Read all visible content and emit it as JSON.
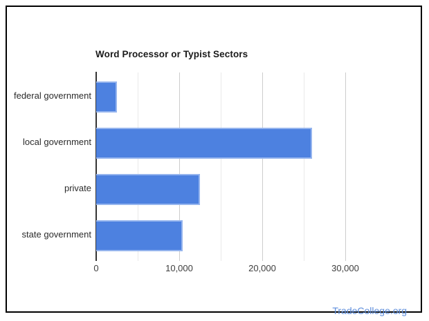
{
  "page": {
    "background_color": "#ffffff",
    "frame_border_color": "#000000"
  },
  "chart_data": {
    "type": "bar",
    "orientation": "horizontal",
    "title": "Word Processor or Typist Sectors",
    "categories": [
      "federal government",
      "local government",
      "private",
      "state government"
    ],
    "values": [
      2500,
      26000,
      12500,
      10400
    ],
    "xlabel": "",
    "ylabel": "",
    "xlim": [
      0,
      35333
    ],
    "x_major_ticks": [
      0,
      10000,
      20000,
      30000
    ],
    "x_major_tick_labels": [
      "0",
      "10,000",
      "20,000",
      "30,000"
    ],
    "x_minor_gridlines": [
      5000,
      15000,
      25000
    ],
    "grid": true,
    "legend_position": "none",
    "bar_color": "#4d81e0",
    "bar_border_color": "#96b5ee",
    "major_gridline_color": "#cccccc",
    "minor_gridline_color": "#e9e9e9",
    "axis_line_color": "#333333"
  },
  "footer": {
    "link_label": "TradeCollege.org",
    "link_color": "#5e8edc"
  }
}
